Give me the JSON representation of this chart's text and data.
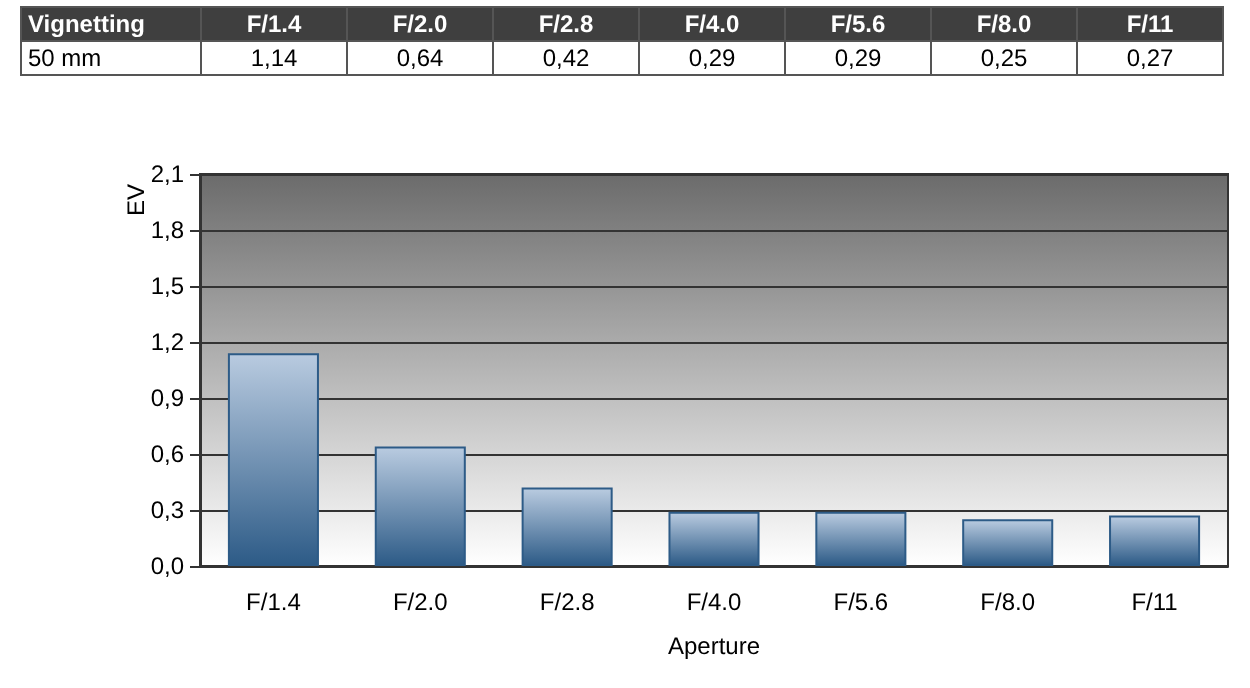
{
  "chart_data": {
    "type": "bar",
    "title": "Vignetting",
    "xlabel": "Aperture",
    "ylabel": "EV",
    "categories": [
      "F/1.4",
      "F/2.0",
      "F/2.8",
      "F/4.0",
      "F/5.6",
      "F/8.0",
      "F/11"
    ],
    "series": [
      {
        "name": "50 mm",
        "color": "#2d5b87",
        "values": [
          1.14,
          0.64,
          0.42,
          0.29,
          0.29,
          0.25,
          0.27
        ],
        "value_labels": [
          "1,14",
          "0,64",
          "0,42",
          "0,29",
          "0,29",
          "0,25",
          "0,27"
        ]
      }
    ],
    "ylim": [
      0,
      2.1
    ],
    "yticks": [
      {
        "value": 0,
        "label": "0,0"
      },
      {
        "value": 0.3,
        "label": "0,3"
      },
      {
        "value": 0.6,
        "label": "0,6"
      },
      {
        "value": 0.9,
        "label": "0,9"
      },
      {
        "value": 1.2,
        "label": "1,2"
      },
      {
        "value": 1.5,
        "label": "1,5"
      },
      {
        "value": 1.8,
        "label": "1,8"
      },
      {
        "value": 2.1,
        "label": "2,1"
      }
    ],
    "grid": "y",
    "legend": false
  }
}
